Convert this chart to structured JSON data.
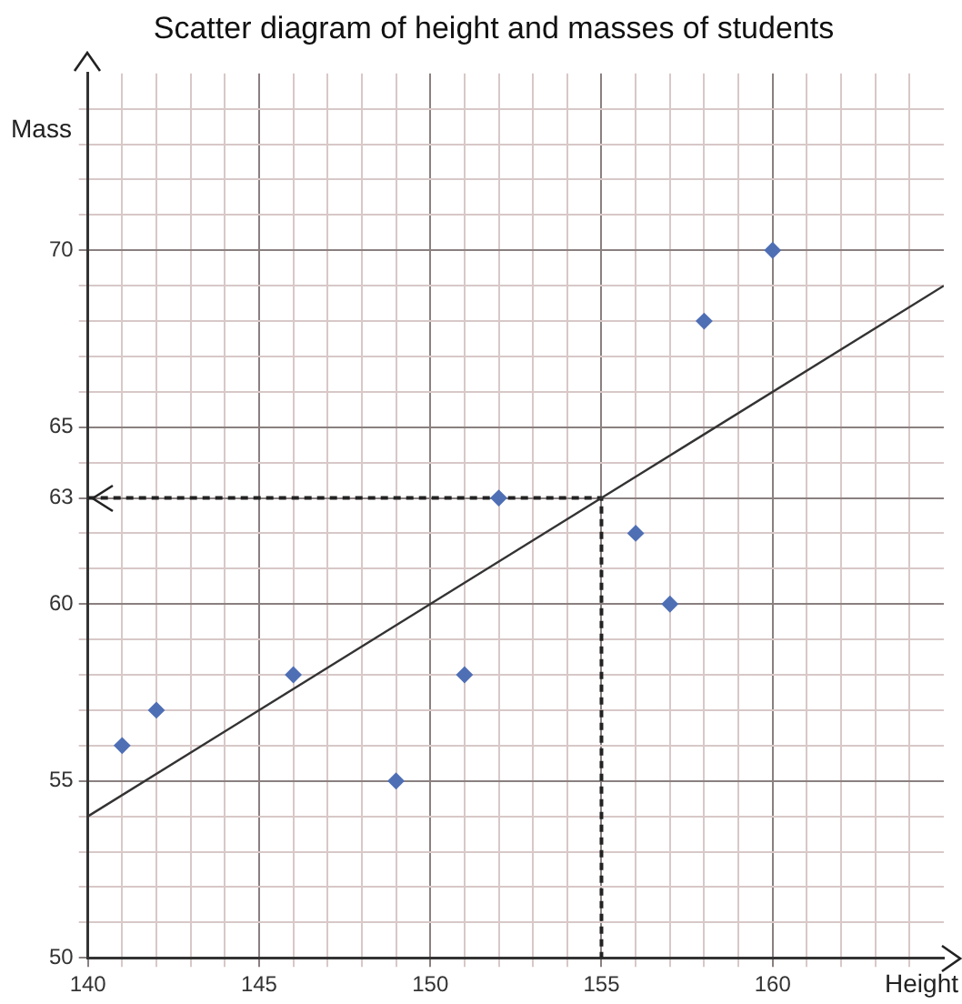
{
  "chart_data": {
    "type": "scatter",
    "title": "Scatter diagram of height and masses of students",
    "xlabel": "Height",
    "ylabel": "Mass",
    "series": [
      {
        "marker": "diamond",
        "color": "#4f6fb5",
        "x": [
          141,
          142,
          146,
          149,
          151,
          152,
          156,
          157,
          158,
          160
        ],
        "values": [
          56,
          57,
          58,
          55,
          58,
          63,
          62,
          60,
          68,
          70
        ]
      },
      {
        "type": "line",
        "marker": "none",
        "color": "#333333",
        "x": [
          140,
          165
        ],
        "values": [
          54,
          69
        ]
      },
      {
        "type": "line",
        "marker": "none",
        "color": "#222222",
        "line_style": "dashed",
        "x": [
          140,
          155,
          155
        ],
        "values": [
          63,
          63,
          50
        ]
      }
    ],
    "grid": true,
    "legend": false,
    "xlim": [
      140,
      165
    ],
    "ylim": [
      50,
      75
    ],
    "xticks": [
      140,
      {
        "value": 141,
        "label": null
      },
      {
        "value": 142,
        "label": null
      },
      {
        "value": 143,
        "label": null
      },
      {
        "value": 144,
        "label": null
      },
      145,
      {
        "value": 146,
        "label": null
      },
      {
        "value": 147,
        "label": null
      },
      {
        "value": 148,
        "label": null
      },
      {
        "value": 149,
        "label": null
      },
      150,
      {
        "value": 151,
        "label": null
      },
      {
        "value": 152,
        "label": null
      },
      {
        "value": 153,
        "label": null
      },
      {
        "value": 154,
        "label": null
      },
      155,
      {
        "value": 156,
        "label": null
      },
      {
        "value": 157,
        "label": null
      },
      {
        "value": 158,
        "label": null
      },
      {
        "value": 159,
        "label": null
      },
      160,
      {
        "value": 161,
        "label": null
      },
      {
        "value": 162,
        "label": null
      },
      {
        "value": 163,
        "label": null
      },
      {
        "value": 164,
        "label": null
      }
    ],
    "yticks": [
      50,
      {
        "value": 51,
        "label": null
      },
      {
        "value": 52,
        "label": null
      },
      {
        "value": 53,
        "label": null
      },
      {
        "value": 54,
        "label": null
      },
      55,
      {
        "value": 56,
        "label": null
      },
      {
        "value": 57,
        "label": null
      },
      {
        "value": 58,
        "label": null
      },
      {
        "value": 59,
        "label": null
      },
      60,
      {
        "value": 61,
        "label": null
      },
      {
        "value": 62,
        "label": null
      },
      63,
      {
        "value": 64,
        "label": null
      },
      65,
      {
        "value": 66,
        "label": null
      },
      {
        "value": 67,
        "label": null
      },
      {
        "value": 68,
        "label": null
      },
      {
        "value": 69,
        "label": null
      },
      70,
      {
        "value": 71,
        "label": null
      },
      {
        "value": 72,
        "label": null
      },
      {
        "value": 73,
        "label": null
      },
      {
        "value": 74,
        "label": null
      }
    ]
  }
}
